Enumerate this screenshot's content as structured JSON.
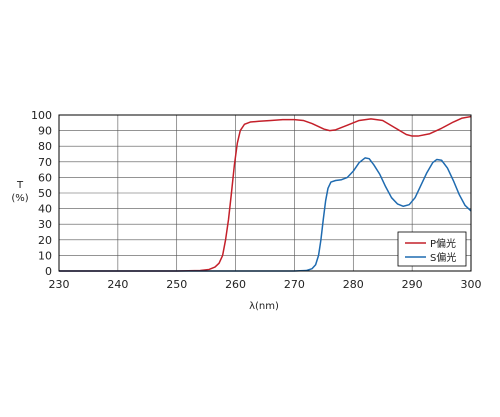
{
  "chart_data": {
    "type": "line",
    "xlabel": "λ(nm)",
    "ylabel_top": "T",
    "ylabel_bottom": "(%)",
    "xlim": [
      230,
      300
    ],
    "ylim": [
      0,
      100
    ],
    "x_ticks": [
      230,
      240,
      250,
      260,
      270,
      280,
      290,
      300
    ],
    "y_ticks": [
      0,
      10,
      20,
      30,
      40,
      50,
      60,
      70,
      80,
      90,
      100
    ],
    "grid": true,
    "legend_position": "bottom-right",
    "series": [
      {
        "name": "P偏光",
        "color": "#c4202a",
        "points": [
          [
            230,
            0
          ],
          [
            250,
            0
          ],
          [
            254,
            0.3
          ],
          [
            255.5,
            1
          ],
          [
            256.5,
            2.5
          ],
          [
            257.2,
            5
          ],
          [
            257.8,
            10
          ],
          [
            258.3,
            20
          ],
          [
            258.8,
            33
          ],
          [
            259.3,
            50
          ],
          [
            259.8,
            68
          ],
          [
            260.3,
            82
          ],
          [
            260.8,
            90
          ],
          [
            261.5,
            94
          ],
          [
            262.5,
            95.5
          ],
          [
            264,
            96
          ],
          [
            266,
            96.5
          ],
          [
            268,
            97
          ],
          [
            270,
            97
          ],
          [
            271.5,
            96.5
          ],
          [
            273,
            94.5
          ],
          [
            275,
            91
          ],
          [
            276,
            90
          ],
          [
            277,
            90.5
          ],
          [
            279,
            93.5
          ],
          [
            281,
            96.5
          ],
          [
            283,
            97.5
          ],
          [
            285,
            96.5
          ],
          [
            287,
            92
          ],
          [
            289,
            87.5
          ],
          [
            290,
            86.5
          ],
          [
            291,
            86.5
          ],
          [
            293,
            88
          ],
          [
            295,
            91.5
          ],
          [
            297,
            95.5
          ],
          [
            298.5,
            98
          ],
          [
            300,
            99
          ]
        ]
      },
      {
        "name": "S偏光",
        "color": "#1f6bb0",
        "points": [
          [
            230,
            0
          ],
          [
            270,
            0
          ],
          [
            272,
            0.3
          ],
          [
            273,
            1.5
          ],
          [
            273.6,
            4
          ],
          [
            274.1,
            10
          ],
          [
            274.5,
            20
          ],
          [
            274.9,
            33
          ],
          [
            275.3,
            45
          ],
          [
            275.7,
            53
          ],
          [
            276.2,
            57
          ],
          [
            277,
            58
          ],
          [
            278,
            58.5
          ],
          [
            279,
            60
          ],
          [
            280,
            64
          ],
          [
            281,
            69.5
          ],
          [
            282,
            72.5
          ],
          [
            282.7,
            72
          ],
          [
            283.5,
            68
          ],
          [
            284.5,
            62
          ],
          [
            285.5,
            54
          ],
          [
            286.5,
            47
          ],
          [
            287.5,
            43
          ],
          [
            288.5,
            41.5
          ],
          [
            289.5,
            42.5
          ],
          [
            290.5,
            47
          ],
          [
            291.5,
            55
          ],
          [
            292.5,
            63
          ],
          [
            293.5,
            69.5
          ],
          [
            294.2,
            71.5
          ],
          [
            295,
            71
          ],
          [
            296,
            66
          ],
          [
            297,
            58
          ],
          [
            298,
            49
          ],
          [
            299,
            42
          ],
          [
            300,
            38.5
          ]
        ]
      }
    ]
  }
}
